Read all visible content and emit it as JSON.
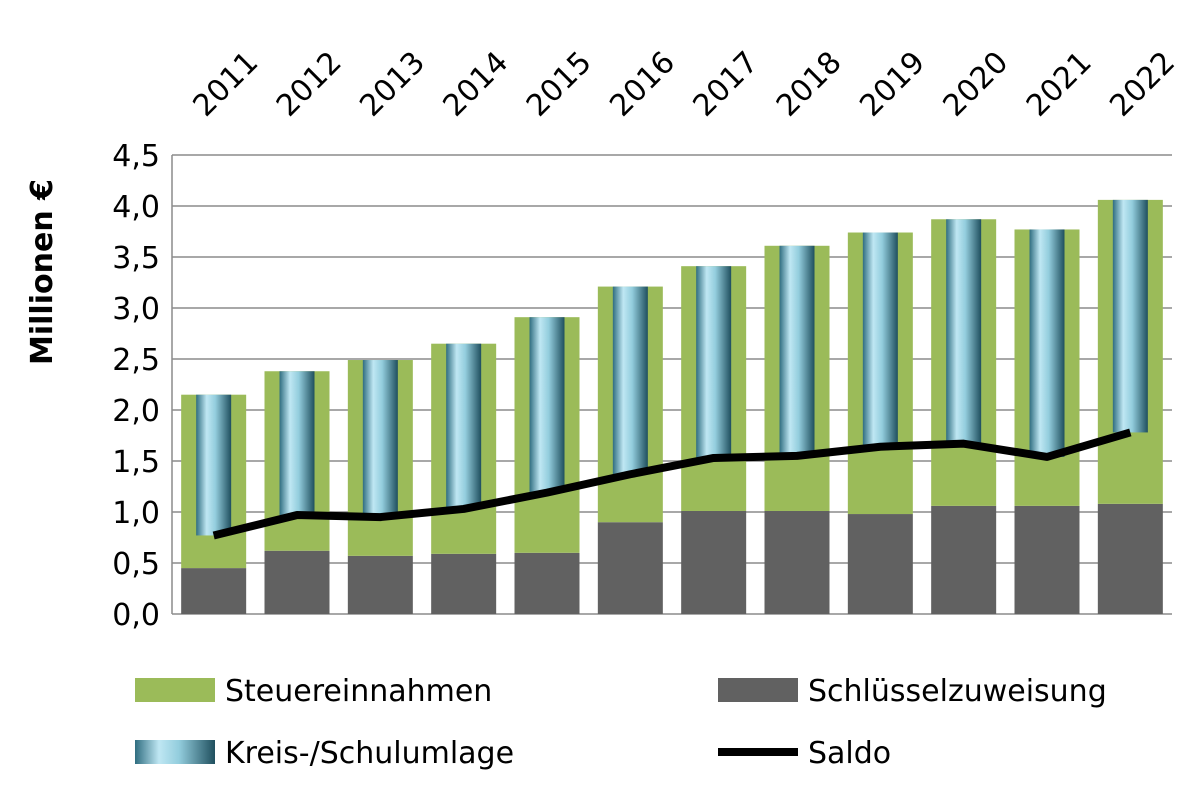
{
  "chart_data": {
    "type": "bar",
    "stacked": true,
    "ylabel": "Millionen €",
    "categories": [
      "2011",
      "2012",
      "2013",
      "2014",
      "2015",
      "2016",
      "2017",
      "2018",
      "2019",
      "2020",
      "2021",
      "2022"
    ],
    "series": [
      {
        "name": "Steuereinnahmen",
        "color": "#9bbb59",
        "type": "bar",
        "values": [
          1.7,
          1.76,
          1.92,
          2.06,
          2.31,
          2.31,
          2.4,
          2.6,
          2.76,
          2.81,
          2.71,
          2.98
        ]
      },
      {
        "name": "Schlüsselzuweisung",
        "color": "#616161",
        "type": "bar",
        "values": [
          0.45,
          0.62,
          0.57,
          0.59,
          0.6,
          0.9,
          1.01,
          1.01,
          0.98,
          1.06,
          1.06,
          1.08
        ]
      },
      {
        "name": "Kreis-/Schulumlage",
        "color": "#93cddd",
        "type": "deduction",
        "values": [
          1.38,
          1.41,
          1.54,
          1.62,
          1.72,
          1.84,
          1.88,
          2.06,
          2.1,
          2.2,
          2.23,
          2.28
        ]
      },
      {
        "name": "Saldo",
        "color": "#000000",
        "type": "line",
        "values": [
          0.77,
          0.97,
          0.95,
          1.03,
          1.19,
          1.37,
          1.53,
          1.55,
          1.64,
          1.67,
          1.54,
          1.78
        ]
      }
    ],
    "ylim": [
      0,
      4.5
    ],
    "yticks": [
      {
        "value": 0,
        "label": "0,0"
      },
      {
        "value": 0.5,
        "label": "0,5"
      },
      {
        "value": 1,
        "label": "1,0"
      },
      {
        "value": 1.5,
        "label": "1,5"
      },
      {
        "value": 2,
        "label": "2,0"
      },
      {
        "value": 2.5,
        "label": "2,5"
      },
      {
        "value": 3,
        "label": "3,0"
      },
      {
        "value": 3.5,
        "label": "3,5"
      },
      {
        "value": 4,
        "label": "4,0"
      },
      {
        "value": 4.5,
        "label": "4,5"
      }
    ],
    "grid": true,
    "legend": "bottom"
  }
}
